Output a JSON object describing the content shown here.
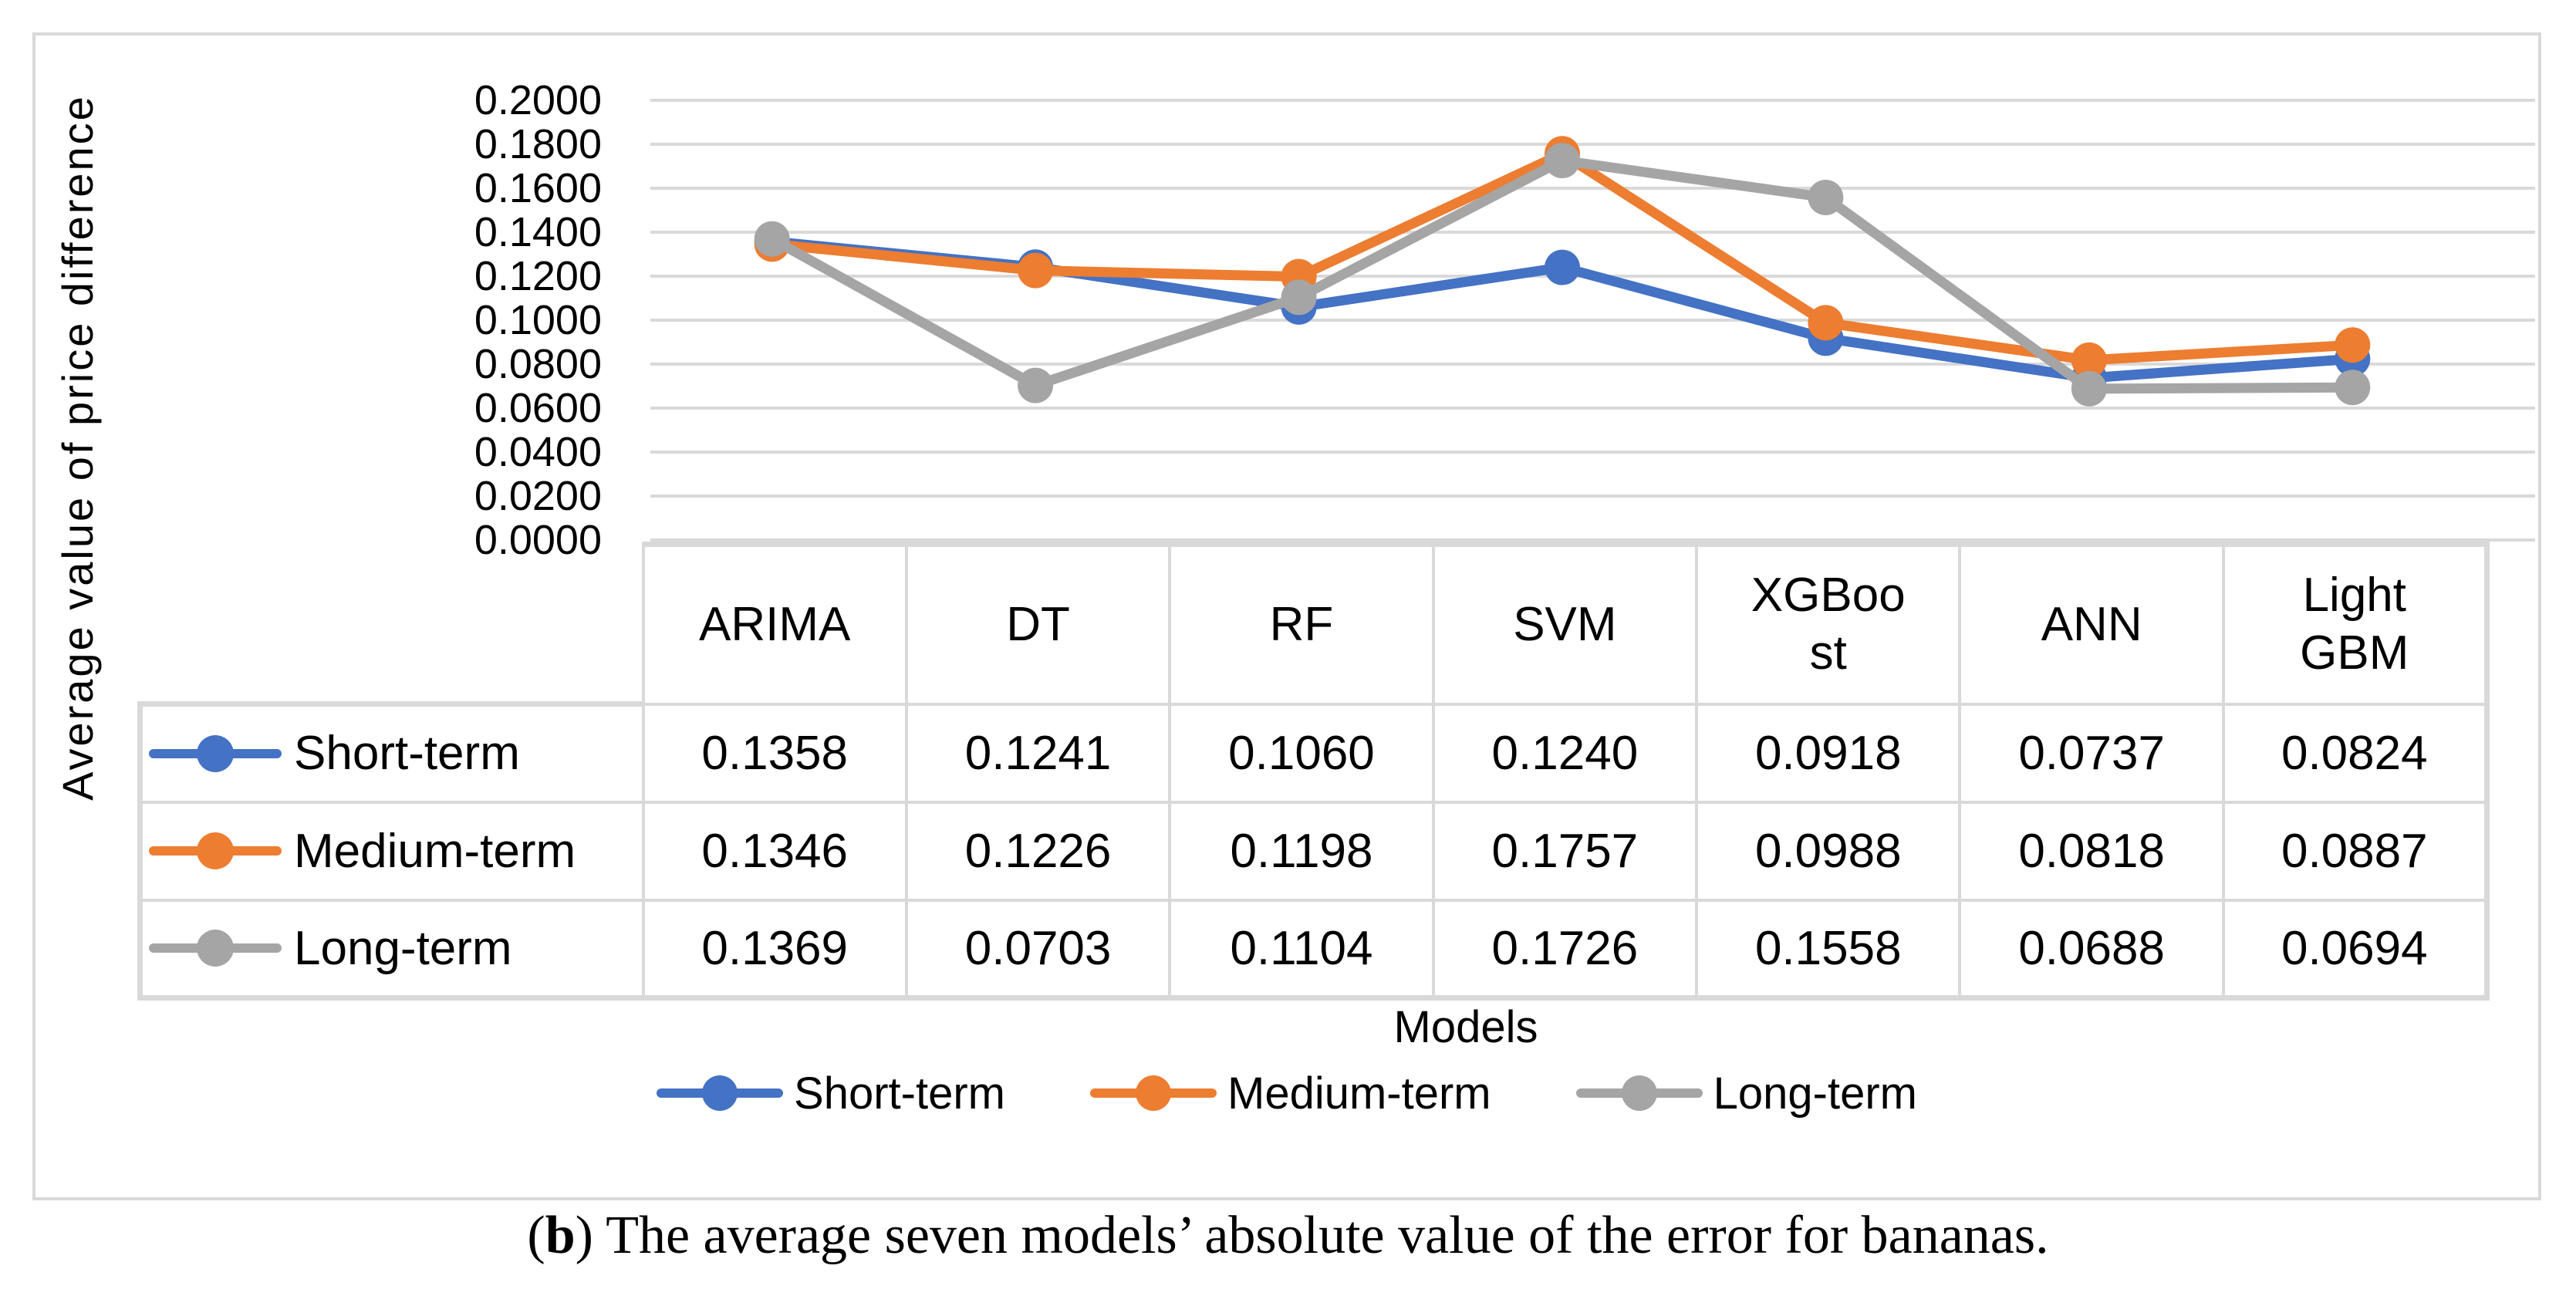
{
  "caption": {
    "open": "(",
    "bold": "b",
    "rest": ") The average seven models’ absolute value of the error for bananas."
  },
  "chart_data": {
    "type": "line",
    "title": "",
    "xlabel": "Models",
    "ylabel": "Average value of price difference",
    "ylim": [
      0,
      0.2
    ],
    "ytick_step": 0.02,
    "ytick_labels": [
      "0.2000",
      "0.1800",
      "0.1600",
      "0.1400",
      "0.1200",
      "0.1000",
      "0.0800",
      "0.0600",
      "0.0400",
      "0.0200",
      "0.0000"
    ],
    "grid": true,
    "gridline_color": "#D9D9D9",
    "legend_position": "bottom",
    "categories": [
      "ARIMA",
      "DT",
      "RF",
      "SVM",
      "XGBoost",
      "ANN",
      "LightGBM"
    ],
    "categories_display": [
      "ARIMA",
      "DT",
      "RF",
      "SVM",
      "XGBoo\nst",
      "ANN",
      "Light\nGBM"
    ],
    "value_format_decimals": 4,
    "series": [
      {
        "name": "Short-term",
        "color": "#4472C4",
        "values": [
          0.1358,
          0.1241,
          0.106,
          0.124,
          0.0918,
          0.0737,
          0.0824
        ]
      },
      {
        "name": "Medium-term",
        "color": "#ED7D31",
        "values": [
          0.1346,
          0.1226,
          0.1198,
          0.1757,
          0.0988,
          0.0818,
          0.0887
        ]
      },
      {
        "name": "Long-term",
        "color": "#A5A5A5",
        "values": [
          0.1369,
          0.0703,
          0.1104,
          0.1726,
          0.1558,
          0.0688,
          0.0694
        ]
      }
    ]
  }
}
